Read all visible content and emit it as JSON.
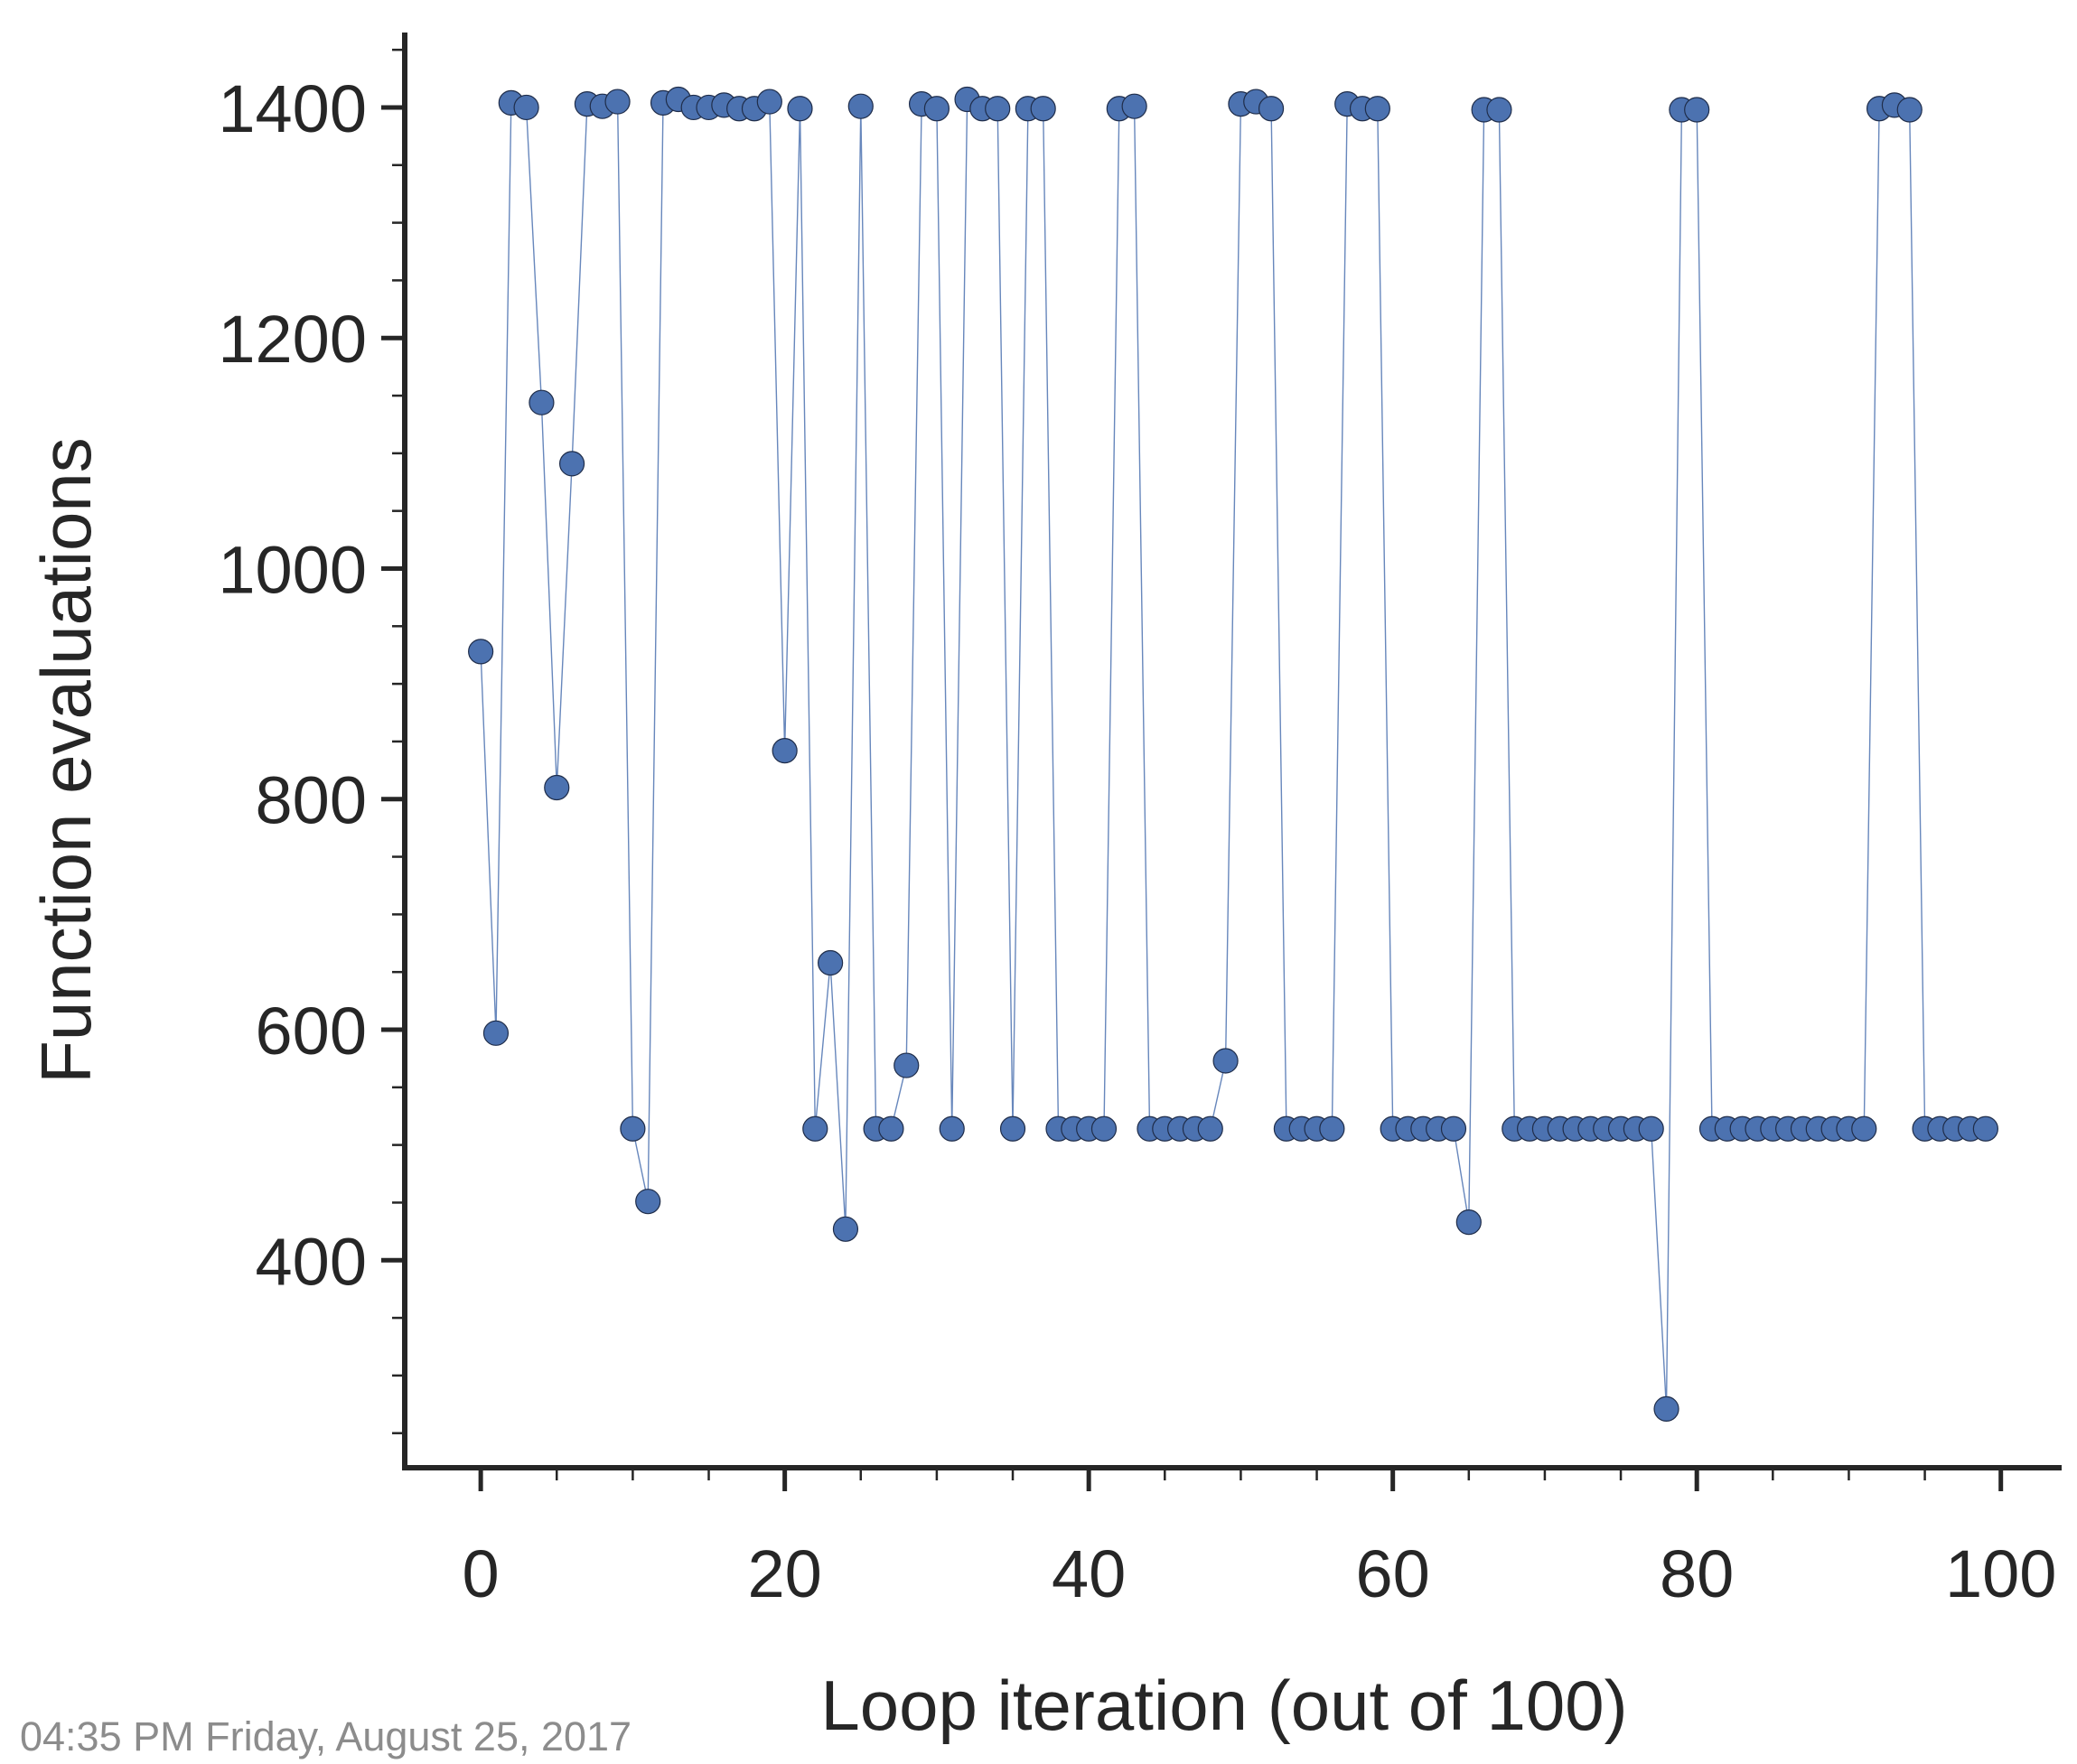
{
  "chart_data": {
    "type": "line",
    "title": "",
    "xlabel": "Loop iteration (out of 100)",
    "ylabel": "Function evaluations",
    "xlim": [
      -5,
      104
    ],
    "ylim": [
      220,
      1465
    ],
    "xticks": [
      0,
      20,
      40,
      60,
      80,
      100
    ],
    "yticks": [
      400,
      600,
      800,
      1000,
      1200,
      1400
    ],
    "x_minor_step": 5,
    "y_minor_step": 50,
    "grid": false,
    "markers": true,
    "colors": {
      "series": "#4C72B0",
      "axis": "#262626",
      "marker_edge": "#1f2d4a"
    },
    "series": [
      {
        "x": [
          0,
          1,
          2,
          3,
          4,
          5,
          6,
          7,
          8,
          9,
          10,
          11,
          12,
          13,
          14,
          15,
          16,
          17,
          18,
          19,
          20,
          21,
          22,
          23,
          24,
          25,
          26,
          27,
          28,
          29,
          30,
          31,
          32,
          33,
          34,
          35,
          36,
          37,
          38,
          39,
          40,
          41,
          42,
          43,
          44,
          45,
          46,
          47,
          48,
          49,
          50,
          51,
          52,
          53,
          54,
          55,
          56,
          57,
          58,
          59,
          60,
          61,
          62,
          63,
          64,
          65,
          66,
          67,
          68,
          69,
          70,
          71,
          72,
          73,
          74,
          75,
          76,
          77,
          78,
          79,
          80,
          81,
          82,
          83,
          84,
          85,
          86,
          87,
          88,
          89,
          90,
          91,
          92,
          93,
          94,
          95,
          96,
          97,
          98,
          99
        ],
        "y": [
          928,
          597,
          1404,
          1400,
          1144,
          810,
          1091,
          1403,
          1401,
          1405,
          514,
          451,
          1404,
          1407,
          1400,
          1400,
          1402,
          1399,
          1399,
          1405,
          842,
          1399,
          514,
          658,
          427,
          1401,
          514,
          514,
          569,
          1403,
          1399,
          514,
          1407,
          1399,
          1399,
          514,
          1399,
          1399,
          514,
          514,
          514,
          514,
          1399,
          1401,
          514,
          514,
          514,
          514,
          514,
          573,
          1403,
          1405,
          1399,
          514,
          514,
          514,
          514,
          1403,
          1399,
          1399,
          514,
          514,
          514,
          514,
          514,
          433,
          1398,
          1398,
          514,
          514,
          514,
          514,
          514,
          514,
          514,
          514,
          514,
          514,
          271,
          1398,
          1398,
          514,
          514,
          514,
          514,
          514,
          514,
          514,
          514,
          514,
          514,
          514,
          1399,
          1402,
          1398,
          514,
          514,
          514,
          514,
          514
        ]
      }
    ]
  },
  "footer": {
    "timestamp": "04:35 PM Friday, August 25, 2017"
  }
}
